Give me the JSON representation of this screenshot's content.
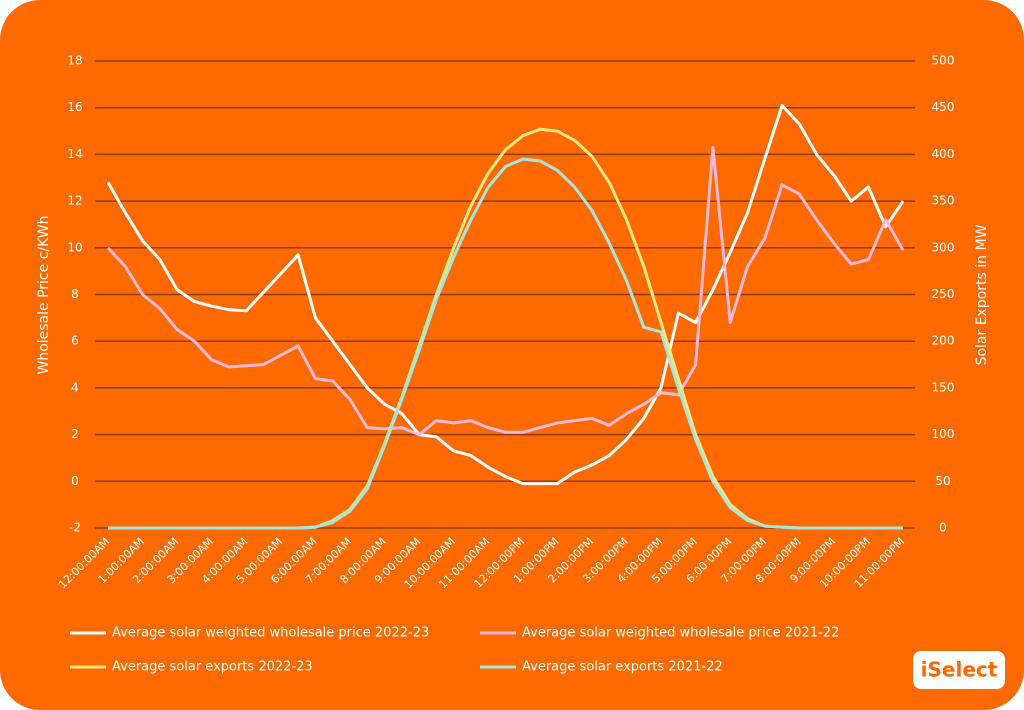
{
  "chart_data": {
    "type": "line",
    "ylabel": "Wholesale Price c/KWh",
    "y2label": "Solar Exports in MW",
    "categories": [
      "12:00:00AM",
      null,
      "1:00:00AM",
      null,
      "2:00:00AM",
      null,
      "3:00:00AM",
      null,
      "4:00:00AM",
      null,
      "5:00:00AM",
      null,
      "6:00:00AM",
      null,
      "7:00:00AM",
      null,
      "8:00:00AM",
      null,
      "9:00:00AM",
      null,
      "10:00:00AM",
      null,
      "11:00:00AM",
      null,
      "12:00:00PM",
      null,
      "1:00:00PM",
      null,
      "2:00:00PM",
      null,
      "3:00:00PM",
      null,
      "4:00:00PM",
      null,
      "5:00:00PM",
      null,
      "6:00:00PM",
      null,
      "7:00:00PM",
      null,
      "8:00:00PM",
      null,
      "9:00:00PM",
      null,
      "10:00:00PM",
      null,
      "11:00:00PM"
    ],
    "series": [
      {
        "name": "Average solar weighted wholesale price 2022-23",
        "color": "#ffffff",
        "values": [
          12.8,
          11.5,
          10.3,
          9.5,
          8.2,
          7.7,
          7.5,
          7.35,
          7.3,
          8.1,
          8.9,
          9.7,
          7.0,
          6.0,
          5.0,
          4.0,
          3.3,
          2.9,
          2.0,
          1.9,
          1.3,
          1.1,
          0.6,
          0.2,
          -0.1,
          -0.1,
          -0.1,
          0.4,
          0.7,
          1.1,
          1.8,
          2.7,
          4.0,
          7.2,
          6.8,
          8.2,
          9.8,
          11.5,
          13.8,
          16.1,
          15.3,
          14.0,
          13.1,
          12.0,
          12.6,
          10.9,
          12.0
        ]
      },
      {
        "name": "Average solar weighted wholesale price 2021-22",
        "color": "#f9b8d6",
        "values": [
          10.0,
          9.2,
          8.0,
          7.4,
          6.5,
          6.0,
          5.2,
          4.9,
          4.95,
          5.0,
          5.4,
          5.8,
          4.4,
          4.3,
          3.5,
          2.3,
          2.25,
          2.3,
          2.0,
          2.6,
          2.5,
          2.6,
          2.3,
          2.1,
          2.1,
          2.3,
          2.5,
          2.6,
          2.7,
          2.4,
          2.9,
          3.3,
          3.8,
          3.7,
          5.0,
          14.3,
          6.8,
          9.2,
          10.4,
          12.7,
          12.3,
          11.2,
          10.2,
          9.3,
          9.5,
          11.2,
          9.9
        ]
      },
      {
        "name": "Average solar exports 2022-23",
        "color": "#ffe680",
        "axis": "y2",
        "values": [
          0,
          0,
          0,
          0,
          0,
          0,
          0,
          0,
          0,
          0,
          0,
          0,
          1,
          8,
          20,
          45,
          90,
          140,
          195,
          250,
          300,
          345,
          380,
          405,
          420,
          427,
          425,
          415,
          398,
          370,
          330,
          280,
          220,
          160,
          100,
          55,
          25,
          10,
          2,
          1,
          0,
          0,
          0,
          0,
          0,
          0,
          0
        ]
      },
      {
        "name": "Average solar exports 2021-22",
        "color": "#a8e6dc",
        "axis": "y2",
        "values": [
          0,
          0,
          0,
          0,
          0,
          0,
          0,
          0,
          0,
          0,
          0,
          0,
          1,
          6,
          18,
          42,
          88,
          138,
          190,
          245,
          290,
          330,
          365,
          387,
          395,
          393,
          383,
          365,
          340,
          305,
          265,
          215,
          210,
          150,
          95,
          50,
          22,
          8,
          2,
          1,
          0,
          0,
          0,
          0,
          0,
          0,
          0
        ]
      }
    ],
    "ylim": [
      -2,
      18
    ],
    "yticks": [
      -2,
      0,
      2,
      4,
      6,
      8,
      10,
      12,
      14,
      16,
      18
    ],
    "y2lim": [
      0,
      500
    ],
    "y2ticks": [
      0,
      50,
      100,
      150,
      200,
      250,
      300,
      350,
      400,
      450,
      500
    ],
    "grid": true
  },
  "logo": "iSelect"
}
